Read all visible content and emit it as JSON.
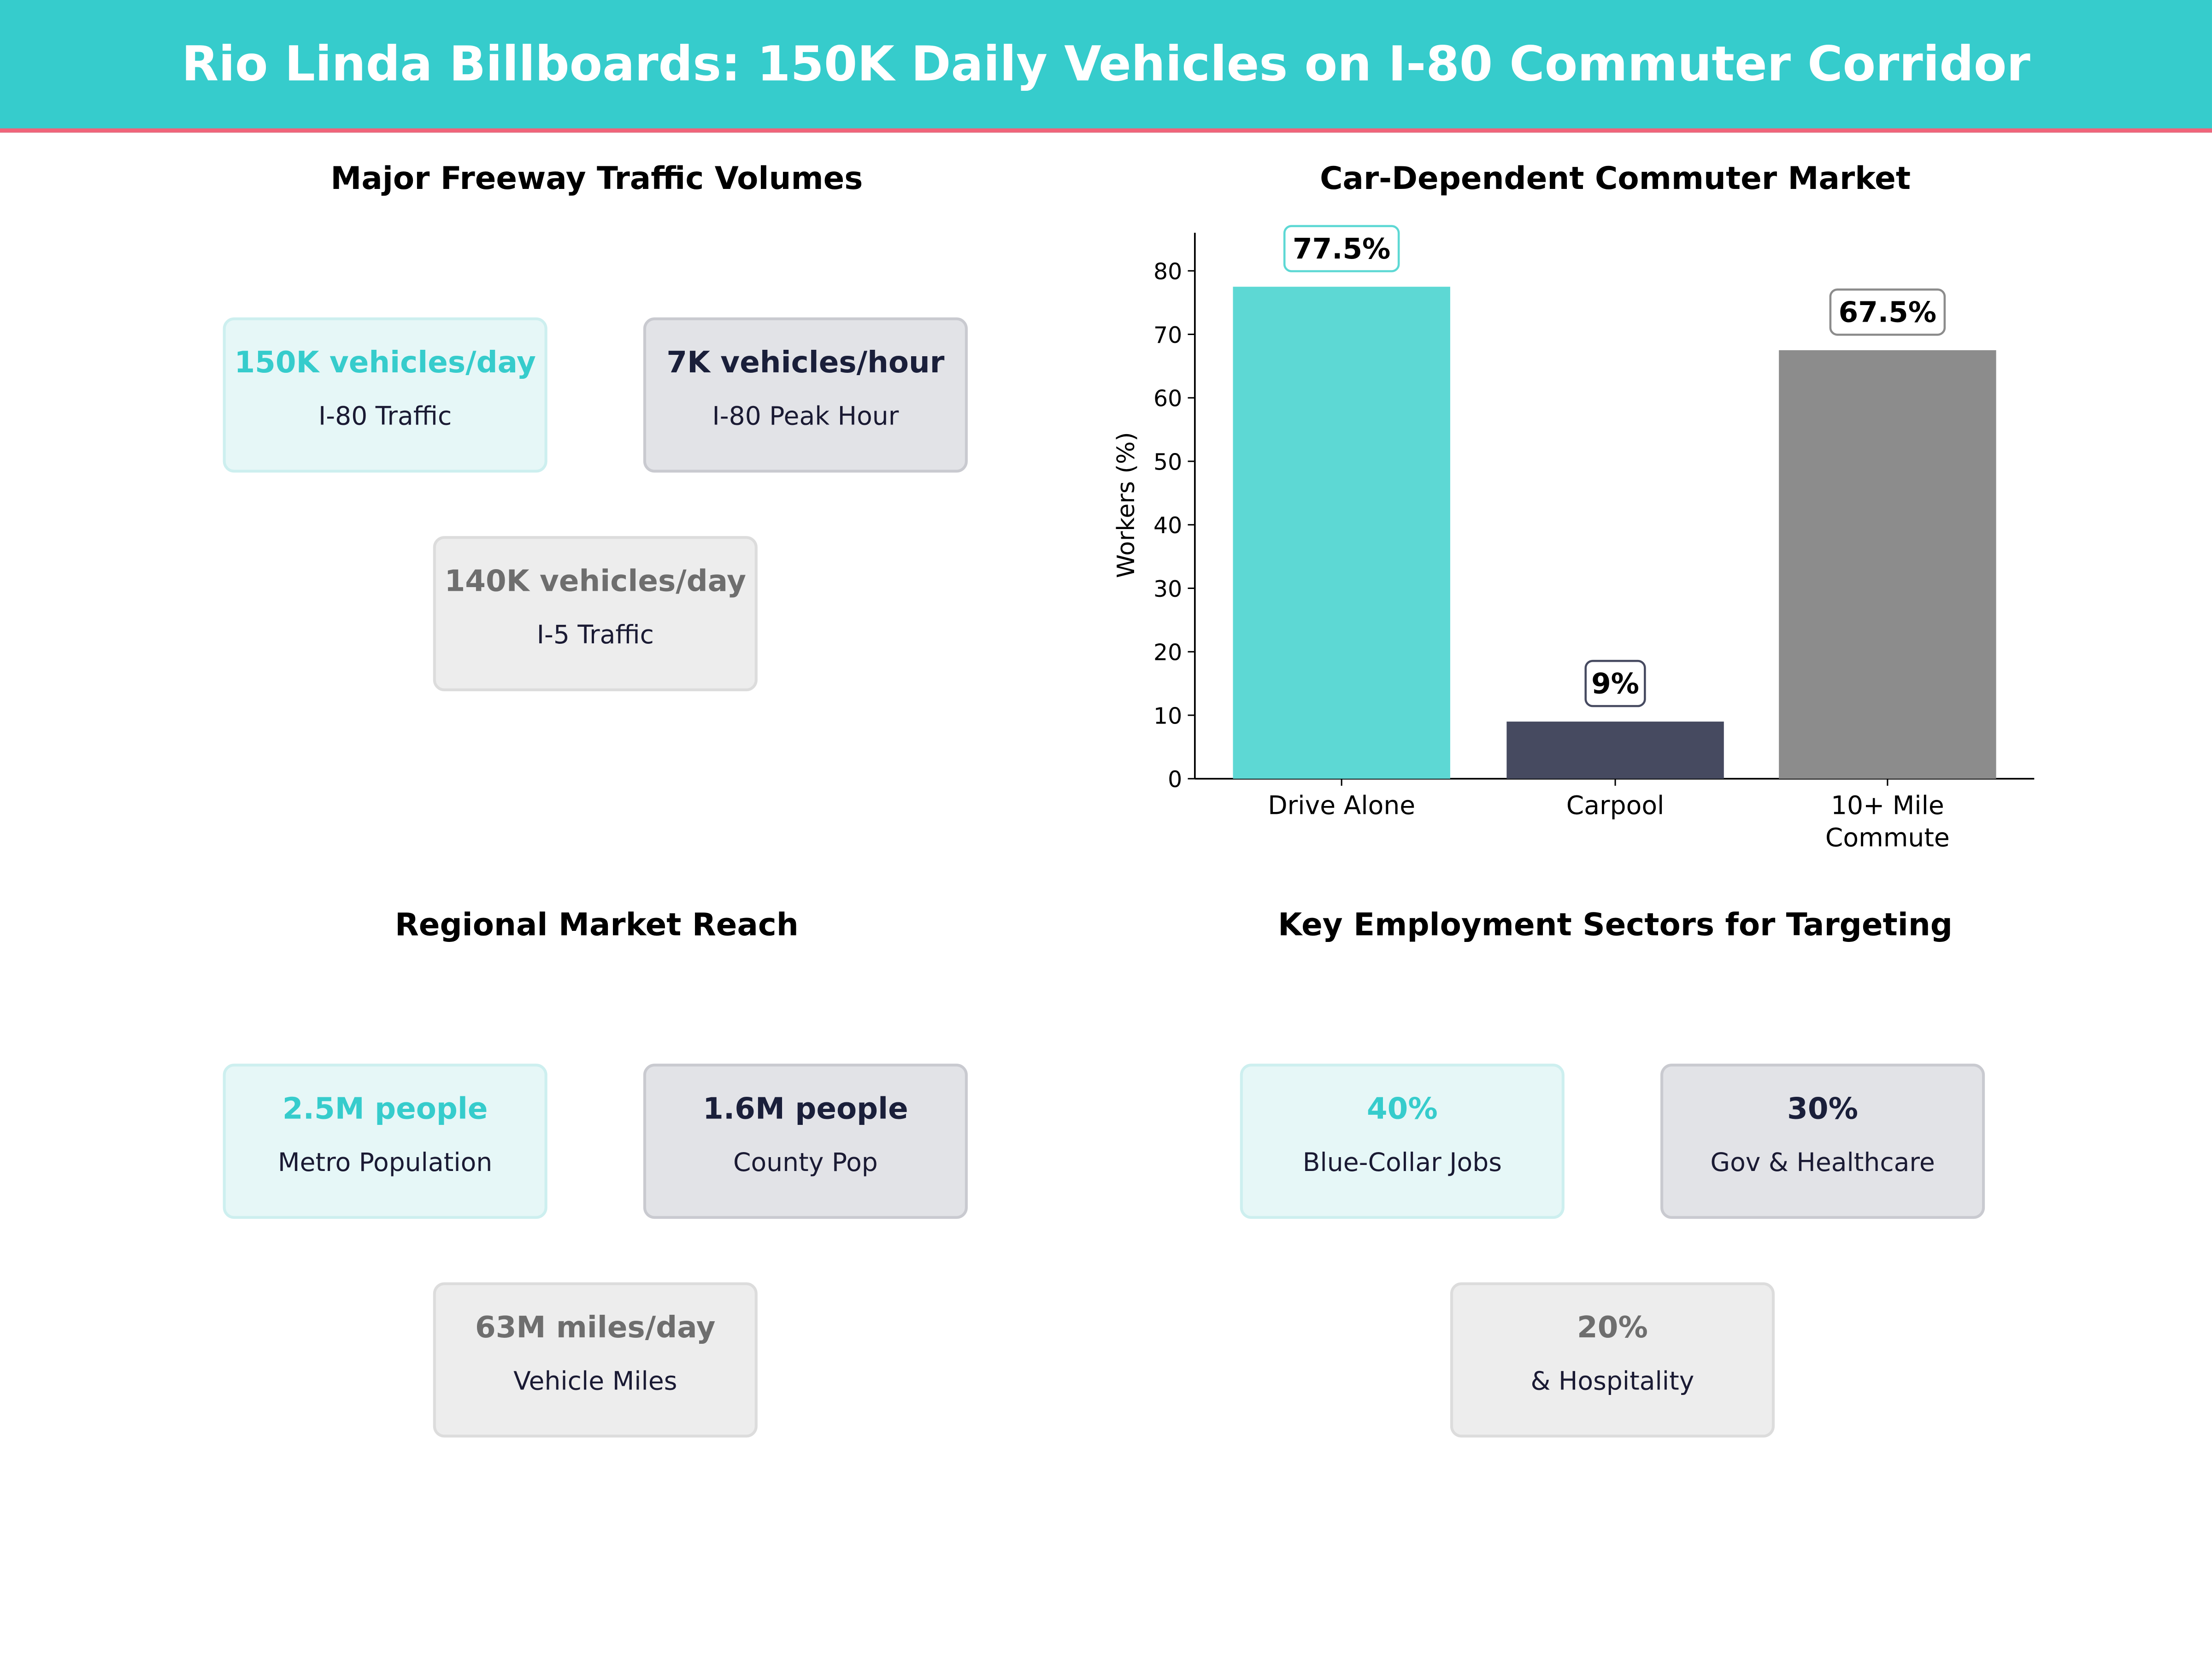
{
  "header": {
    "title": "Rio Linda Billboards: 150K Daily Vehicles on I-80 Commuter Corridor"
  },
  "panels": {
    "traffic": {
      "title": "Major Freeway Traffic Volumes",
      "cards": [
        {
          "value": "150K vehicles/day",
          "label": "I-80  Traffic"
        },
        {
          "value": "7K vehicles/hour",
          "label": "I-80 Peak Hour"
        },
        {
          "value": "140K vehicles/day",
          "label": "I-5  Traffic"
        }
      ]
    },
    "reach": {
      "title": "Regional Market Reach",
      "cards": [
        {
          "value": "2.5M people",
          "label": "Metro Population"
        },
        {
          "value": "1.6M people",
          "label": "County Pop"
        },
        {
          "value": "63M miles/day",
          "label": "Vehicle Miles"
        }
      ]
    },
    "sectors": {
      "title": "Key Employment Sectors for Targeting",
      "cards": [
        {
          "value": "40%",
          "label": "Blue-Collar Jobs"
        },
        {
          "value": "30%",
          "label": "Gov & Healthcare"
        },
        {
          "value": "20%",
          "label": "& Hospitality"
        }
      ]
    }
  },
  "chart_data": {
    "type": "bar",
    "title": "Car-Dependent Commuter Market",
    "ylabel": "Workers (%)",
    "categories": [
      "Drive Alone",
      "Carpool",
      "10+ Mile\nCommute"
    ],
    "values": [
      77.5,
      9,
      67.5
    ],
    "data_labels": [
      "77.5%",
      "9%",
      "67.5%"
    ],
    "colors": [
      "#5DD8D4",
      "#464A60",
      "#8C8C8C"
    ],
    "label_border_colors": [
      "#5DD8D4",
      "#464A60",
      "#8C8C8C"
    ],
    "yticks": [
      0,
      10,
      20,
      30,
      40,
      50,
      60,
      70,
      80
    ],
    "ylim": [
      0,
      86
    ],
    "grid": false
  }
}
